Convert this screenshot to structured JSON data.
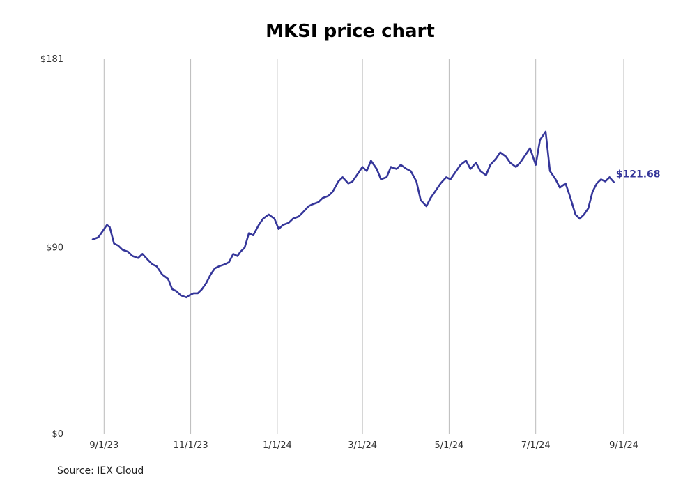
{
  "source": "Source: IEX Cloud",
  "colors": {
    "line": "#35369a",
    "grid": "#bbbbbb",
    "text": "#333333"
  },
  "chart_data": {
    "type": "line",
    "title": "MKSI price chart",
    "xlabel": "",
    "ylabel": "",
    "ylim": [
      0,
      181
    ],
    "xlim": [
      "2023-08-24",
      "2024-09-01"
    ],
    "y_ticks": [
      {
        "value": 0,
        "label": "$0"
      },
      {
        "value": 90,
        "label": "$90"
      },
      {
        "value": 181,
        "label": "$181"
      }
    ],
    "x_ticks": [
      {
        "date": "2023-09-01",
        "label": "9/1/23"
      },
      {
        "date": "2023-11-01",
        "label": "11/1/23"
      },
      {
        "date": "2024-01-01",
        "label": "1/1/24"
      },
      {
        "date": "2024-03-01",
        "label": "3/1/24"
      },
      {
        "date": "2024-05-01",
        "label": "5/1/24"
      },
      {
        "date": "2024-07-01",
        "label": "7/1/24"
      },
      {
        "date": "2024-09-01",
        "label": "9/1/24"
      }
    ],
    "grid": "vertical",
    "end_label": "$121.68",
    "series": [
      {
        "x": [
          "2023-08-24",
          "2023-08-28",
          "2023-08-31",
          "2023-09-03",
          "2023-09-05",
          "2023-09-08",
          "2023-09-11",
          "2023-09-14",
          "2023-09-18",
          "2023-09-21",
          "2023-09-25",
          "2023-09-28",
          "2023-10-02",
          "2023-10-05",
          "2023-10-08",
          "2023-10-12",
          "2023-10-16",
          "2023-10-19",
          "2023-10-22",
          "2023-10-25",
          "2023-10-29",
          "2023-10-31",
          "2023-11-03",
          "2023-11-06",
          "2023-11-09",
          "2023-11-12",
          "2023-11-15",
          "2023-11-18",
          "2023-11-21",
          "2023-11-25",
          "2023-11-28",
          "2023-12-01",
          "2023-12-04",
          "2023-12-06",
          "2023-12-09",
          "2023-12-12",
          "2023-12-15",
          "2023-12-19",
          "2023-12-22",
          "2023-12-26",
          "2023-12-30",
          "2024-01-02",
          "2024-01-05",
          "2024-01-09",
          "2024-01-12",
          "2024-01-16",
          "2024-01-19",
          "2024-01-23",
          "2024-01-26",
          "2024-01-30",
          "2024-02-02",
          "2024-02-06",
          "2024-02-09",
          "2024-02-13",
          "2024-02-16",
          "2024-02-20",
          "2024-02-23",
          "2024-02-27",
          "2024-03-01",
          "2024-03-04",
          "2024-03-07",
          "2024-03-11",
          "2024-03-14",
          "2024-03-18",
          "2024-03-21",
          "2024-03-25",
          "2024-03-28",
          "2024-04-01",
          "2024-04-04",
          "2024-04-08",
          "2024-04-11",
          "2024-04-15",
          "2024-04-18",
          "2024-04-22",
          "2024-04-25",
          "2024-04-29",
          "2024-05-02",
          "2024-05-06",
          "2024-05-09",
          "2024-05-13",
          "2024-05-16",
          "2024-05-20",
          "2024-05-23",
          "2024-05-27",
          "2024-05-30",
          "2024-06-03",
          "2024-06-06",
          "2024-06-10",
          "2024-06-13",
          "2024-06-17",
          "2024-06-20",
          "2024-06-24",
          "2024-06-27",
          "2024-07-01",
          "2024-07-04",
          "2024-07-08",
          "2024-07-11",
          "2024-07-15",
          "2024-07-18",
          "2024-07-22",
          "2024-07-25",
          "2024-07-29",
          "2024-08-01",
          "2024-08-04",
          "2024-08-07",
          "2024-08-10",
          "2024-08-13",
          "2024-08-16",
          "2024-08-19",
          "2024-08-22",
          "2024-08-25"
        ],
        "y": [
          94,
          95,
          98,
          101,
          100,
          92,
          91,
          89,
          88,
          86,
          85,
          87,
          84,
          82,
          81,
          77,
          75,
          70,
          69,
          67,
          66,
          67,
          68,
          68,
          70,
          73,
          77,
          80,
          81,
          82,
          83,
          87,
          86,
          88,
          90,
          97,
          96,
          101,
          104,
          106,
          104,
          99,
          101,
          102,
          104,
          105,
          107,
          110,
          111,
          112,
          114,
          115,
          117,
          122,
          124,
          121,
          122,
          126,
          129,
          127,
          132,
          128,
          123,
          124,
          129,
          128,
          130,
          128,
          127,
          122,
          113,
          110,
          114,
          118,
          121,
          124,
          123,
          127,
          130,
          132,
          128,
          131,
          127,
          125,
          130,
          133,
          136,
          134,
          131,
          129,
          131,
          135,
          138,
          130,
          142,
          146,
          127,
          123,
          119,
          121,
          115,
          106,
          104,
          106,
          109,
          117,
          121,
          123,
          122,
          124,
          121.68
        ]
      }
    ]
  }
}
